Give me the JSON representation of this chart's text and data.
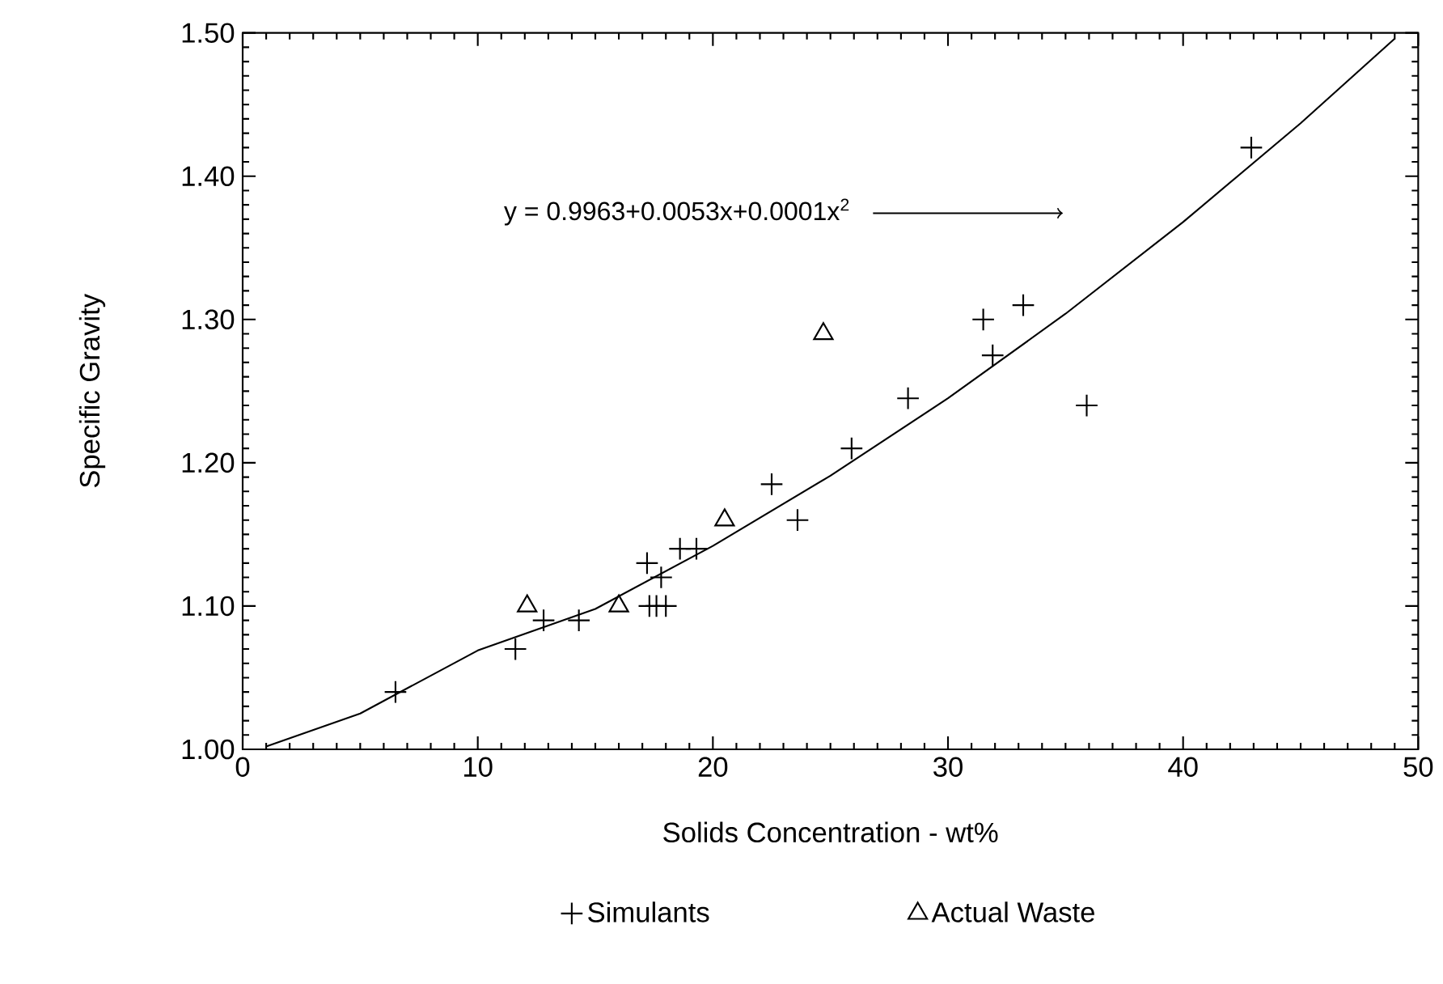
{
  "chart_data": {
    "type": "scatter",
    "xlabel": "Solids Concentration - wt%",
    "ylabel": "Specific Gravity",
    "xlim": [
      0,
      50
    ],
    "xticks": [
      0,
      10,
      20,
      30,
      40,
      50
    ],
    "ylim": [
      1.0,
      1.5
    ],
    "yticks": [
      {
        "value": 1.0,
        "label": "1.00"
      },
      {
        "value": 1.1,
        "label": "1.10"
      },
      {
        "value": 1.2,
        "label": "1.20"
      },
      {
        "value": 1.3,
        "label": "1.30"
      },
      {
        "value": 1.4,
        "label": "1.40"
      },
      {
        "value": 1.5,
        "label": "1.50"
      }
    ],
    "grid": false,
    "legend": "bottom",
    "series": [
      {
        "name": "Simulants",
        "color": "#000000",
        "marker": "cross",
        "x": [
          6.5,
          11.6,
          12.8,
          14.3,
          17.2,
          17.3,
          17.6,
          18.0,
          17.8,
          18.6,
          19.3,
          22.5,
          23.6,
          25.9,
          28.3,
          31.5,
          31.9,
          33.2,
          35.9,
          42.9
        ],
        "values": [
          1.04,
          1.07,
          1.09,
          1.09,
          1.13,
          1.1,
          1.1,
          1.1,
          1.12,
          1.14,
          1.14,
          1.185,
          1.16,
          1.21,
          1.245,
          1.3,
          1.275,
          1.31,
          1.24,
          1.42
        ]
      },
      {
        "name": "Actual Waste",
        "color": "#000000",
        "marker": "triangle",
        "x": [
          12.1,
          16.0,
          20.5,
          24.7
        ],
        "values": [
          1.1,
          1.1,
          1.16,
          1.29
        ]
      },
      {
        "type": "line",
        "color": "#000000",
        "marker": "none",
        "line_style": "solid",
        "x": [
          1,
          5,
          10,
          15,
          20,
          25,
          30,
          35,
          40,
          45,
          49
        ],
        "values": [
          1.002,
          1.025,
          1.069,
          1.098,
          1.142,
          1.191,
          1.245,
          1.304,
          1.368,
          1.437,
          1.496
        ]
      }
    ],
    "annotations": [
      "y = 0.9963+0.0053x+0.0001x$^{2}$"
    ]
  }
}
